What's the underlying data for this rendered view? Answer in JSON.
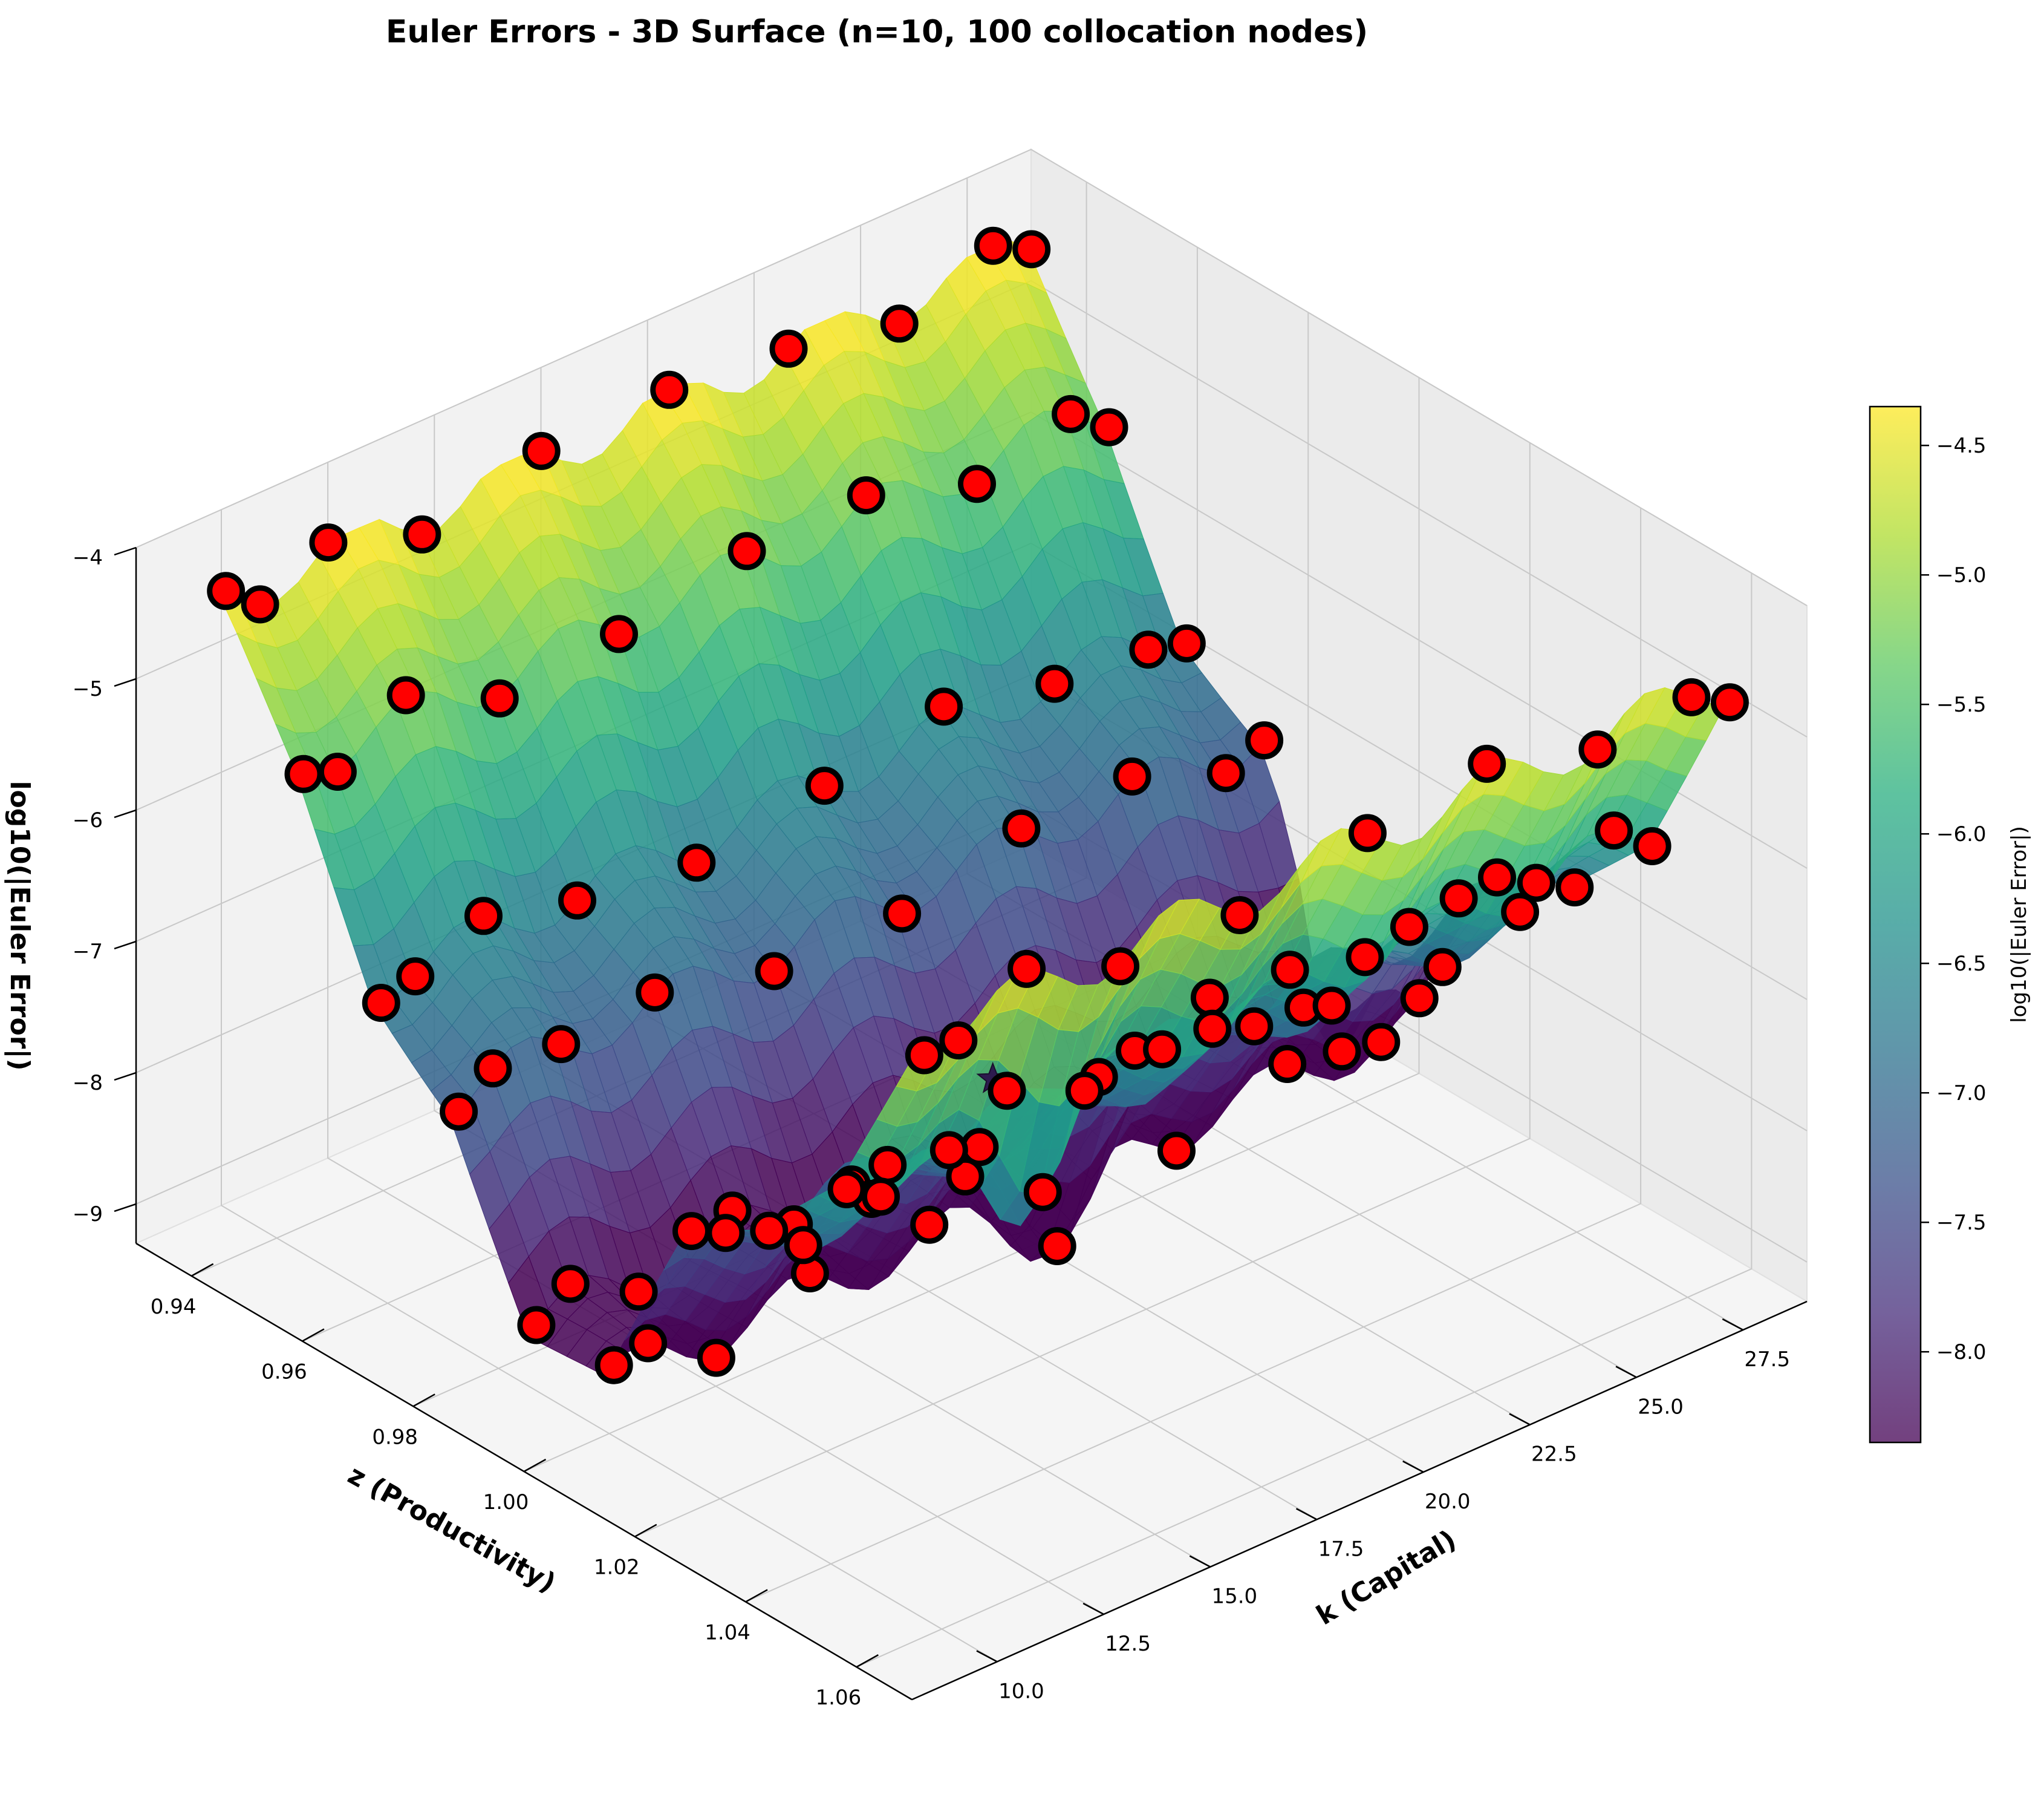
{
  "chart_data": {
    "type": "surface3d",
    "title": "Euler Errors - 3D Surface (n=10, 100 collocation nodes)",
    "xlabel": "k (Capital)",
    "ylabel": "z (Productivity)",
    "zlabel": "log10(|Euler Error|)",
    "colorbar_label": "log10(|Euler Error|)",
    "colormap": "viridis",
    "grid": true,
    "xlim": [
      8.0,
      29.0
    ],
    "ylim": [
      0.93,
      1.07
    ],
    "zlim": [
      -9.3,
      -4.0
    ],
    "x_ticks": [
      "10.0",
      "12.5",
      "15.0",
      "17.5",
      "20.0",
      "22.5",
      "25.0",
      "27.5"
    ],
    "y_ticks": [
      "0.94",
      "0.96",
      "0.98",
      "1.00",
      "1.02",
      "1.04",
      "1.06"
    ],
    "z_ticks": [
      "−9",
      "−8",
      "−7",
      "−6",
      "−5",
      "−4"
    ],
    "colorbar_range": [
      -8.35,
      -4.35
    ],
    "colorbar_ticks": [
      "−4.5",
      "−5.0",
      "−5.5",
      "−6.0",
      "−6.5",
      "−7.0",
      "−7.5",
      "−8.0"
    ],
    "surface": {
      "k_range": [
        9.0,
        28.0
      ],
      "z_range": [
        0.937,
        1.063
      ],
      "row_levels": [
        {
          "z": 0.937,
          "level": -4.4
        },
        {
          "z": 0.951,
          "level": -5.3
        },
        {
          "z": 0.965,
          "level": -6.6
        },
        {
          "z": 0.979,
          "level": -7.1
        },
        {
          "z": 0.993,
          "level": -8.5
        },
        {
          "z": 1.007,
          "level": -8.6
        },
        {
          "z": 1.021,
          "level": -7.3
        },
        {
          "z": 1.035,
          "level": -6.9
        },
        {
          "z": 1.049,
          "level": -6.1
        },
        {
          "z": 1.063,
          "level": -4.6
        }
      ],
      "dips": [
        {
          "k": 19.5,
          "z": 1.007,
          "value": -9.0
        },
        {
          "k": 13.0,
          "z": 1.049,
          "value": -6.9
        }
      ],
      "spike": {
        "k": 28.0,
        "z": 0.993,
        "value": -9.3
      }
    },
    "collocation_nodes": {
      "k": [
        9.2,
        10.0,
        11.6,
        13.8,
        16.6,
        19.6,
        22.4,
        25.0,
        27.2,
        28.1
      ],
      "z": [
        0.937,
        0.951,
        0.965,
        0.979,
        0.993,
        1.007,
        1.021,
        1.035,
        1.049,
        1.063
      ],
      "marker_color": "#ff0000"
    },
    "star_marker": {
      "k": 19.0,
      "z": 1.0,
      "value": -7.9
    }
  }
}
